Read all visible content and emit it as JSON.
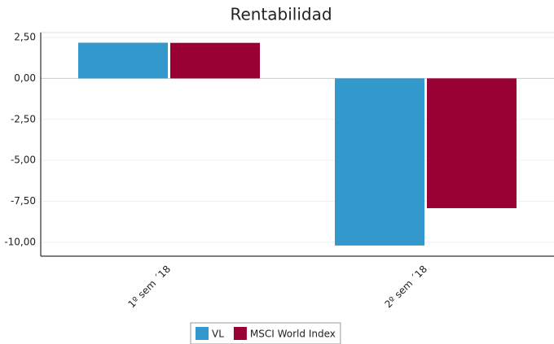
{
  "chart_data": {
    "type": "bar",
    "title": "Rentabilidad",
    "categories": [
      "1º sem ´18",
      "2º sem ´18"
    ],
    "series": [
      {
        "name": "VL",
        "color": "#3399cc",
        "values": [
          2.18,
          -10.2
        ]
      },
      {
        "name": "MSCI World Index",
        "color": "#990033",
        "values": [
          2.17,
          -7.92
        ]
      }
    ],
    "ylim": [
      -10.85,
      2.8
    ],
    "yticks": [
      {
        "value": 2.5,
        "label": "2,50"
      },
      {
        "value": 0,
        "label": "0,00"
      },
      {
        "value": -2.5,
        "label": "-2,50"
      },
      {
        "value": -5,
        "label": "-5,00"
      },
      {
        "value": -7.5,
        "label": "-7,50"
      },
      {
        "value": -10,
        "label": "-10,00"
      }
    ],
    "grid": true,
    "legend": "bottom"
  }
}
